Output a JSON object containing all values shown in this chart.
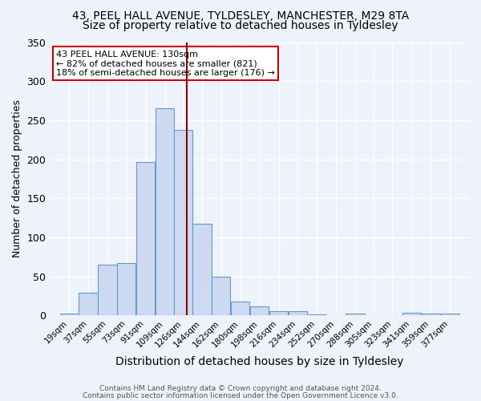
{
  "title1": "43, PEEL HALL AVENUE, TYLDESLEY, MANCHESTER, M29 8TA",
  "title2": "Size of property relative to detached houses in Tyldesley",
  "xlabel": "Distribution of detached houses by size in Tyldesley",
  "ylabel": "Number of detached properties",
  "bin_labels": [
    "19sqm",
    "37sqm",
    "55sqm",
    "73sqm",
    "91sqm",
    "109sqm",
    "126sqm",
    "144sqm",
    "162sqm",
    "180sqm",
    "198sqm",
    "216sqm",
    "234sqm",
    "252sqm",
    "270sqm",
    "288sqm",
    "305sqm",
    "323sqm",
    "341sqm",
    "359sqm",
    "377sqm"
  ],
  "bar_values": [
    2,
    29,
    65,
    67,
    197,
    265,
    238,
    117,
    50,
    18,
    12,
    6,
    6,
    1,
    0,
    3,
    0,
    0,
    4,
    3,
    2
  ],
  "bar_color": "#ccd9f0",
  "bar_edge_color": "#6699cc",
  "ylim": [
    0,
    350
  ],
  "yticks": [
    0,
    50,
    100,
    150,
    200,
    250,
    300,
    350
  ],
  "bin_centers": [
    19,
    37,
    55,
    73,
    91,
    109,
    126,
    144,
    162,
    180,
    198,
    216,
    234,
    252,
    270,
    288,
    305,
    323,
    341,
    359,
    377
  ],
  "bin_width": 18,
  "red_line_x": 130,
  "annotation_text": "43 PEEL HALL AVENUE: 130sqm\n← 82% of detached houses are smaller (821)\n18% of semi-detached houses are larger (176) →",
  "annotation_box_color": "#ffffff",
  "annotation_box_edge_color": "#cc0000",
  "footnote1": "Contains HM Land Registry data © Crown copyright and database right 2024.",
  "footnote2": "Contains public sector information licensed under the Open Government Licence v3.0.",
  "bg_color": "#edf2fb",
  "grid_color": "#ffffff",
  "title1_fontsize": 10,
  "title2_fontsize": 10,
  "xlabel_fontsize": 10,
  "ylabel_fontsize": 9,
  "tick_fontsize": 7.5,
  "annotation_fontsize": 8,
  "footnote_fontsize": 6.5
}
